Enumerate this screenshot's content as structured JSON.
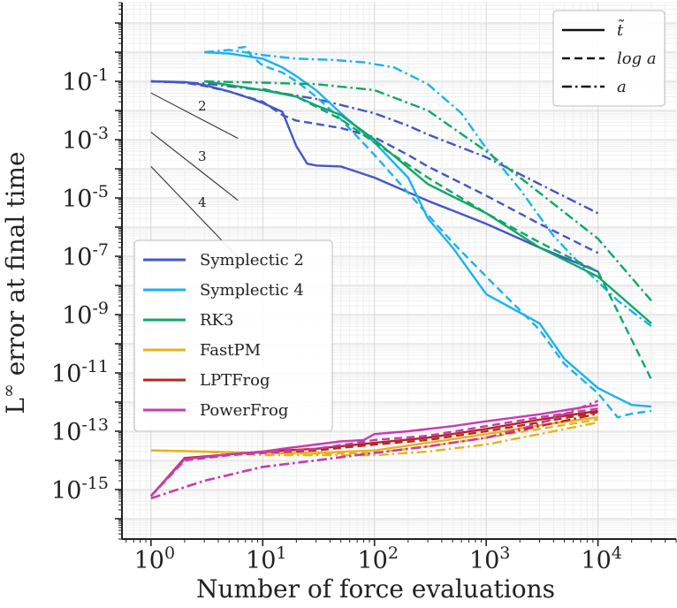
{
  "chart_data": {
    "type": "line",
    "xlabel": "Number of force evaluations",
    "ylabel": "L^∞ error at final time",
    "xscale": "log",
    "yscale": "log",
    "xlim": [
      0.55,
      50000
    ],
    "ylim": [
      2e-17,
      50
    ],
    "grid": true,
    "x_ticks": [
      {
        "value": 1,
        "base": "10",
        "exp": "0"
      },
      {
        "value": 10,
        "base": "10",
        "exp": "1"
      },
      {
        "value": 100,
        "base": "10",
        "exp": "2"
      },
      {
        "value": 1000,
        "base": "10",
        "exp": "3"
      },
      {
        "value": 10000,
        "base": "10",
        "exp": "4"
      }
    ],
    "y_ticks": [
      {
        "value": 0.1,
        "base": "10",
        "exp": "-1"
      },
      {
        "value": 0.001,
        "base": "10",
        "exp": "-3"
      },
      {
        "value": 1e-05,
        "base": "10",
        "exp": "-5"
      },
      {
        "value": 1e-07,
        "base": "10",
        "exp": "-7"
      },
      {
        "value": 1e-09,
        "base": "10",
        "exp": "-9"
      },
      {
        "value": 1e-11,
        "base": "10",
        "exp": "-11"
      },
      {
        "value": 1e-13,
        "base": "10",
        "exp": "-13"
      },
      {
        "value": 1e-15,
        "base": "10",
        "exp": "-15"
      }
    ],
    "series_legend": {
      "placement": "center-left",
      "entries": [
        "Symplectic 2",
        "Symplectic 4",
        "RK3",
        "FastPM",
        "LPTFrog",
        "PowerFrog"
      ]
    },
    "style_legend": {
      "placement": "top-right",
      "entries": [
        {
          "label": "t̃",
          "dash": "solid"
        },
        {
          "label": "log a",
          "dash": "dashed"
        },
        {
          "label": "a",
          "dash": "dashdot"
        }
      ]
    },
    "slope_guides": [
      {
        "label": "2",
        "order": 2,
        "x": [
          1,
          6
        ],
        "y_start": 0.04
      },
      {
        "label": "3",
        "order": 3,
        "x": [
          1,
          6
        ],
        "y_start": 0.0018
      },
      {
        "label": "4",
        "order": 4,
        "x": [
          1,
          6
        ],
        "y_start": 0.00012
      }
    ],
    "series": [
      {
        "name": "Symplectic 2",
        "variable": "t̃",
        "dash": "solid",
        "color": "#4456c7",
        "points": [
          [
            1,
            0.1
          ],
          [
            2,
            0.095
          ],
          [
            3,
            0.075
          ],
          [
            5,
            0.045
          ],
          [
            8,
            0.025
          ],
          [
            10,
            0.018
          ],
          [
            15,
            0.009
          ],
          [
            20,
            0.0006
          ],
          [
            25,
            0.00015
          ],
          [
            30,
            0.00013
          ],
          [
            50,
            0.00012
          ],
          [
            100,
            5e-05
          ],
          [
            300,
            8e-06
          ],
          [
            1000,
            1.3e-06
          ],
          [
            3000,
            2e-07
          ],
          [
            10000,
            3e-08
          ]
        ]
      },
      {
        "name": "Symplectic 2",
        "variable": "log a",
        "dash": "dashed",
        "color": "#4456c7",
        "points": [
          [
            1,
            0.1
          ],
          [
            2,
            0.09
          ],
          [
            3,
            0.07
          ],
          [
            5,
            0.045
          ],
          [
            10,
            0.02
          ],
          [
            15,
            0.007
          ],
          [
            20,
            0.0045
          ],
          [
            30,
            0.0035
          ],
          [
            50,
            0.0025
          ],
          [
            100,
            0.0012
          ],
          [
            200,
            0.0003
          ],
          [
            300,
            0.00012
          ],
          [
            1000,
            1.2e-05
          ],
          [
            3000,
            1.3e-06
          ],
          [
            10000,
            1.3e-07
          ]
        ]
      },
      {
        "name": "Symplectic 2",
        "variable": "a",
        "dash": "dashdot",
        "color": "#4456c7",
        "points": [
          [
            1,
            0.1
          ],
          [
            3,
            0.085
          ],
          [
            10,
            0.05
          ],
          [
            30,
            0.025
          ],
          [
            100,
            0.008
          ],
          [
            200,
            0.003
          ],
          [
            300,
            0.0015
          ],
          [
            1000,
            0.00025
          ],
          [
            3000,
            3e-05
          ],
          [
            10000,
            3e-06
          ]
        ]
      },
      {
        "name": "Symplectic 4",
        "variable": "t̃",
        "dash": "solid",
        "color": "#1ab3ee",
        "points": [
          [
            3,
            1.0
          ],
          [
            5,
            0.9
          ],
          [
            10,
            0.6
          ],
          [
            15,
            0.3
          ],
          [
            20,
            0.15
          ],
          [
            30,
            0.05
          ],
          [
            50,
            0.008
          ],
          [
            100,
            0.0008
          ],
          [
            200,
            5e-05
          ],
          [
            300,
            2e-06
          ],
          [
            500,
            2e-07
          ],
          [
            1000,
            5e-09
          ],
          [
            3000,
            5e-10
          ],
          [
            5000,
            3e-11
          ],
          [
            10000,
            3e-12
          ],
          [
            20000,
            8e-13
          ],
          [
            30000,
            7e-13
          ]
        ]
      },
      {
        "name": "Symplectic 4",
        "variable": "log a",
        "dash": "dashed",
        "color": "#1ab3ee",
        "points": [
          [
            6,
            1.4
          ],
          [
            7,
            1.5
          ],
          [
            8,
            0.7
          ],
          [
            10,
            0.35
          ],
          [
            15,
            0.2
          ],
          [
            20,
            0.1
          ],
          [
            30,
            0.03
          ],
          [
            50,
            0.005
          ],
          [
            100,
            0.0003
          ],
          [
            200,
            1.5e-05
          ],
          [
            500,
            3e-07
          ],
          [
            1000,
            2e-08
          ],
          [
            3000,
            3e-10
          ],
          [
            5000,
            2e-11
          ],
          [
            10000,
            2e-12
          ],
          [
            15000,
            3e-13
          ],
          [
            20000,
            4e-13
          ],
          [
            30000,
            5e-13
          ]
        ]
      },
      {
        "name": "Symplectic 4",
        "variable": "a",
        "dash": "dashdot",
        "color": "#1ab3ee",
        "points": [
          [
            3,
            1.0
          ],
          [
            5,
            1.2
          ],
          [
            10,
            0.8
          ],
          [
            20,
            0.6
          ],
          [
            40,
            0.55
          ],
          [
            80,
            0.45
          ],
          [
            150,
            0.3
          ],
          [
            300,
            0.08
          ],
          [
            600,
            0.008
          ],
          [
            1000,
            0.0005
          ],
          [
            2000,
            2e-05
          ],
          [
            4000,
            5e-07
          ],
          [
            8000,
            3e-08
          ],
          [
            15000,
            3e-09
          ],
          [
            30000,
            4e-10
          ]
        ]
      },
      {
        "name": "RK3",
        "variable": "t̃",
        "dash": "solid",
        "color": "#0fa866",
        "points": [
          [
            3,
            0.1
          ],
          [
            10,
            0.05
          ],
          [
            20,
            0.03
          ],
          [
            30,
            0.015
          ],
          [
            50,
            0.007
          ],
          [
            100,
            0.001
          ],
          [
            300,
            3e-05
          ],
          [
            1000,
            3e-06
          ],
          [
            3000,
            2e-07
          ],
          [
            10000,
            2e-08
          ],
          [
            30000,
            5e-10
          ]
        ]
      },
      {
        "name": "RK3",
        "variable": "log a",
        "dash": "dashed",
        "color": "#0fa866",
        "points": [
          [
            10,
            0.055
          ],
          [
            20,
            0.03
          ],
          [
            50,
            0.005
          ],
          [
            100,
            0.0008
          ],
          [
            300,
            5e-05
          ],
          [
            1000,
            3e-06
          ],
          [
            3000,
            3e-07
          ],
          [
            10000,
            3e-08
          ],
          [
            30000,
            6e-12
          ]
        ]
      },
      {
        "name": "RK3",
        "variable": "a",
        "dash": "dashdot",
        "color": "#0fa866",
        "points": [
          [
            3,
            0.1
          ],
          [
            10,
            0.09
          ],
          [
            30,
            0.08
          ],
          [
            100,
            0.05
          ],
          [
            300,
            0.01
          ],
          [
            1000,
            0.0004
          ],
          [
            3000,
            1.5e-05
          ],
          [
            10000,
            4e-07
          ],
          [
            30000,
            3e-09
          ]
        ]
      },
      {
        "name": "FastPM",
        "variable": "t̃",
        "dash": "solid",
        "color": "#e6b31e",
        "points": [
          [
            1,
            2.2e-14
          ],
          [
            3,
            2e-14
          ],
          [
            10,
            1.8e-14
          ],
          [
            30,
            1.8e-14
          ],
          [
            100,
            2.2e-14
          ],
          [
            300,
            4e-14
          ],
          [
            1000,
            8e-14
          ],
          [
            3000,
            1.6e-13
          ],
          [
            10000,
            3e-13
          ]
        ]
      },
      {
        "name": "FastPM",
        "variable": "log a",
        "dash": "dashed",
        "color": "#e6b31e",
        "points": [
          [
            1,
            2.2e-14
          ],
          [
            3,
            2e-14
          ],
          [
            10,
            1.8e-14
          ],
          [
            30,
            1.7e-14
          ],
          [
            100,
            1.8e-14
          ],
          [
            300,
            3e-14
          ],
          [
            1000,
            6e-14
          ],
          [
            3000,
            1.2e-13
          ],
          [
            10000,
            2.5e-13
          ]
        ]
      },
      {
        "name": "FastPM",
        "variable": "a",
        "dash": "dashdot",
        "color": "#e6b31e",
        "points": [
          [
            1,
            2.2e-14
          ],
          [
            3,
            2e-14
          ],
          [
            10,
            1.5e-14
          ],
          [
            30,
            1.5e-14
          ],
          [
            100,
            1.5e-14
          ],
          [
            300,
            2e-14
          ],
          [
            1000,
            3.5e-14
          ],
          [
            3000,
            8e-14
          ],
          [
            10000,
            2e-13
          ]
        ]
      },
      {
        "name": "LPTFrog",
        "variable": "t̃",
        "dash": "solid",
        "color": "#b52820",
        "points": [
          [
            1,
            6e-16
          ],
          [
            2,
            1.2e-14
          ],
          [
            5,
            1.6e-14
          ],
          [
            10,
            2e-14
          ],
          [
            30,
            2.5e-14
          ],
          [
            100,
            4e-14
          ],
          [
            300,
            6e-14
          ],
          [
            1000,
            1.2e-13
          ],
          [
            3000,
            2.5e-13
          ],
          [
            10000,
            5e-13
          ]
        ]
      },
      {
        "name": "LPTFrog",
        "variable": "log a",
        "dash": "dashed",
        "color": "#b52820",
        "points": [
          [
            1,
            6e-16
          ],
          [
            2,
            1e-14
          ],
          [
            5,
            1.5e-14
          ],
          [
            10,
            1.8e-14
          ],
          [
            30,
            2.2e-14
          ],
          [
            100,
            3.5e-14
          ],
          [
            300,
            5e-14
          ],
          [
            1000,
            1e-13
          ],
          [
            3000,
            2e-13
          ],
          [
            10000,
            4.5e-13
          ]
        ]
      },
      {
        "name": "LPTFrog",
        "variable": "a",
        "dash": "dashdot",
        "color": "#b52820",
        "points": [
          [
            1,
            5e-16
          ],
          [
            3,
            2e-15
          ],
          [
            10,
            6e-15
          ],
          [
            30,
            1e-14
          ],
          [
            100,
            1.8e-14
          ],
          [
            300,
            3e-14
          ],
          [
            1000,
            6e-14
          ],
          [
            3000,
            1.5e-13
          ],
          [
            10000,
            4e-13
          ]
        ]
      },
      {
        "name": "PowerFrog",
        "variable": "t̃",
        "dash": "solid",
        "color": "#c93ab3",
        "points": [
          [
            1,
            6e-16
          ],
          [
            2,
            1.1e-14
          ],
          [
            5,
            1.6e-14
          ],
          [
            10,
            2e-14
          ],
          [
            15,
            2.5e-14
          ],
          [
            30,
            3.5e-14
          ],
          [
            50,
            4.5e-14
          ],
          [
            80,
            5e-14
          ],
          [
            100,
            8e-14
          ],
          [
            200,
            1e-13
          ],
          [
            500,
            1.5e-13
          ],
          [
            1000,
            2.2e-13
          ],
          [
            3000,
            3.8e-13
          ],
          [
            10000,
            8e-13
          ]
        ]
      },
      {
        "name": "PowerFrog",
        "variable": "log a",
        "dash": "dashed",
        "color": "#c93ab3",
        "points": [
          [
            1,
            6e-16
          ],
          [
            2,
            1e-14
          ],
          [
            5,
            1.5e-14
          ],
          [
            10,
            1.8e-14
          ],
          [
            30,
            2.5e-14
          ],
          [
            100,
            5e-14
          ],
          [
            300,
            7e-14
          ],
          [
            1000,
            1.5e-13
          ],
          [
            3000,
            3e-13
          ],
          [
            10000,
            6e-13
          ]
        ]
      },
      {
        "name": "PowerFrog",
        "variable": "a",
        "dash": "dashdot",
        "color": "#c93ab3",
        "points": [
          [
            1,
            5e-16
          ],
          [
            3,
            2e-15
          ],
          [
            10,
            6e-15
          ],
          [
            30,
            1e-14
          ],
          [
            100,
            1.8e-14
          ],
          [
            300,
            3e-14
          ],
          [
            1000,
            6e-14
          ],
          [
            3000,
            1.8e-13
          ],
          [
            10000,
            1.1e-12
          ]
        ]
      }
    ]
  }
}
